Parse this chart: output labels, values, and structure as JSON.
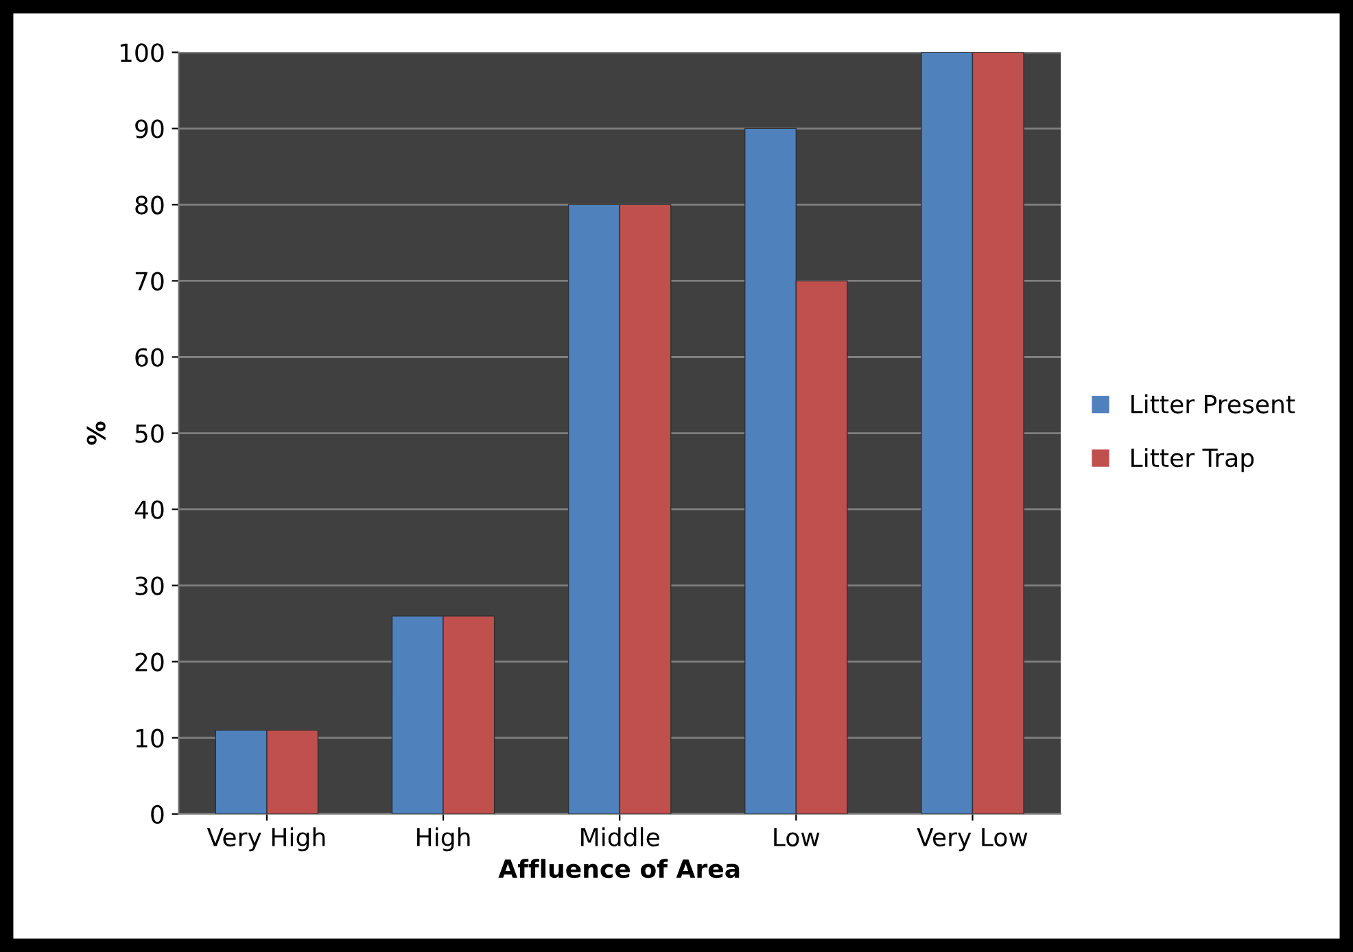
{
  "chart_data": {
    "type": "bar",
    "xlabel": "Affluence of Area",
    "ylabel": "%",
    "categories": [
      "Very High",
      "High",
      "Middle",
      "Low",
      "Very Low"
    ],
    "series": [
      {
        "name": "Litter Present",
        "color": "#4f81bd",
        "values": [
          11,
          26,
          80,
          90,
          100
        ]
      },
      {
        "name": "Litter Trap",
        "color": "#c0504d",
        "values": [
          11,
          26,
          80,
          70,
          100
        ]
      }
    ],
    "ylim": [
      0,
      100
    ],
    "yticks": [
      0,
      10,
      20,
      30,
      40,
      50,
      60,
      70,
      80,
      90,
      100
    ],
    "grid": "y",
    "legend": "right"
  }
}
